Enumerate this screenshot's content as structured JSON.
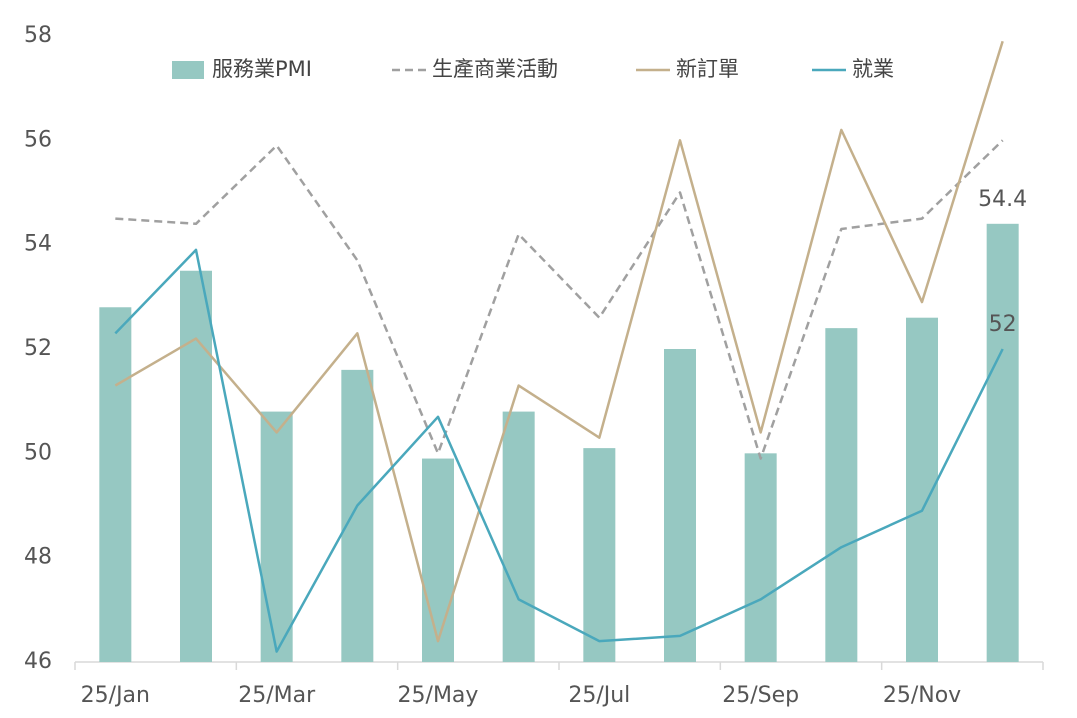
{
  "chart_data": {
    "type": "bar-line",
    "categories": [
      "25/Jan",
      null,
      "25/Mar",
      null,
      "25/May",
      null,
      "25/Jul",
      null,
      "25/Sep",
      null,
      "25/Nov",
      null
    ],
    "ylim": [
      46,
      58
    ],
    "yticks": [
      46,
      48,
      50,
      52,
      54,
      56,
      58
    ],
    "grid": false,
    "legend": "top",
    "series": [
      {
        "name": "服務業PMI",
        "type": "bar",
        "color": "#96c8c2",
        "values": [
          52.8,
          53.5,
          50.8,
          51.6,
          49.9,
          50.8,
          50.1,
          52.0,
          50.0,
          52.4,
          52.6,
          54.4
        ],
        "value_labels": [
          null,
          null,
          null,
          null,
          null,
          null,
          null,
          null,
          null,
          null,
          null,
          "54.4"
        ]
      },
      {
        "name": "生產商業活動",
        "type": "line",
        "dashed": true,
        "color": "#a0a0a0",
        "values": [
          54.5,
          54.4,
          55.9,
          53.7,
          50.0,
          54.2,
          52.6,
          55.0,
          49.9,
          54.3,
          54.5,
          56.0
        ]
      },
      {
        "name": "新訂單",
        "type": "line",
        "color": "#c4b08c",
        "values": [
          51.3,
          52.2,
          50.4,
          52.3,
          46.4,
          51.3,
          50.3,
          56.0,
          50.4,
          56.2,
          52.9,
          57.9
        ]
      },
      {
        "name": "就業",
        "type": "line",
        "color": "#4aa8bc",
        "values": [
          52.3,
          53.9,
          46.2,
          49.0,
          50.7,
          47.2,
          46.4,
          46.5,
          47.2,
          48.2,
          48.9,
          52.0
        ],
        "value_labels": [
          null,
          null,
          null,
          null,
          null,
          null,
          null,
          null,
          null,
          null,
          null,
          "52"
        ]
      }
    ]
  }
}
